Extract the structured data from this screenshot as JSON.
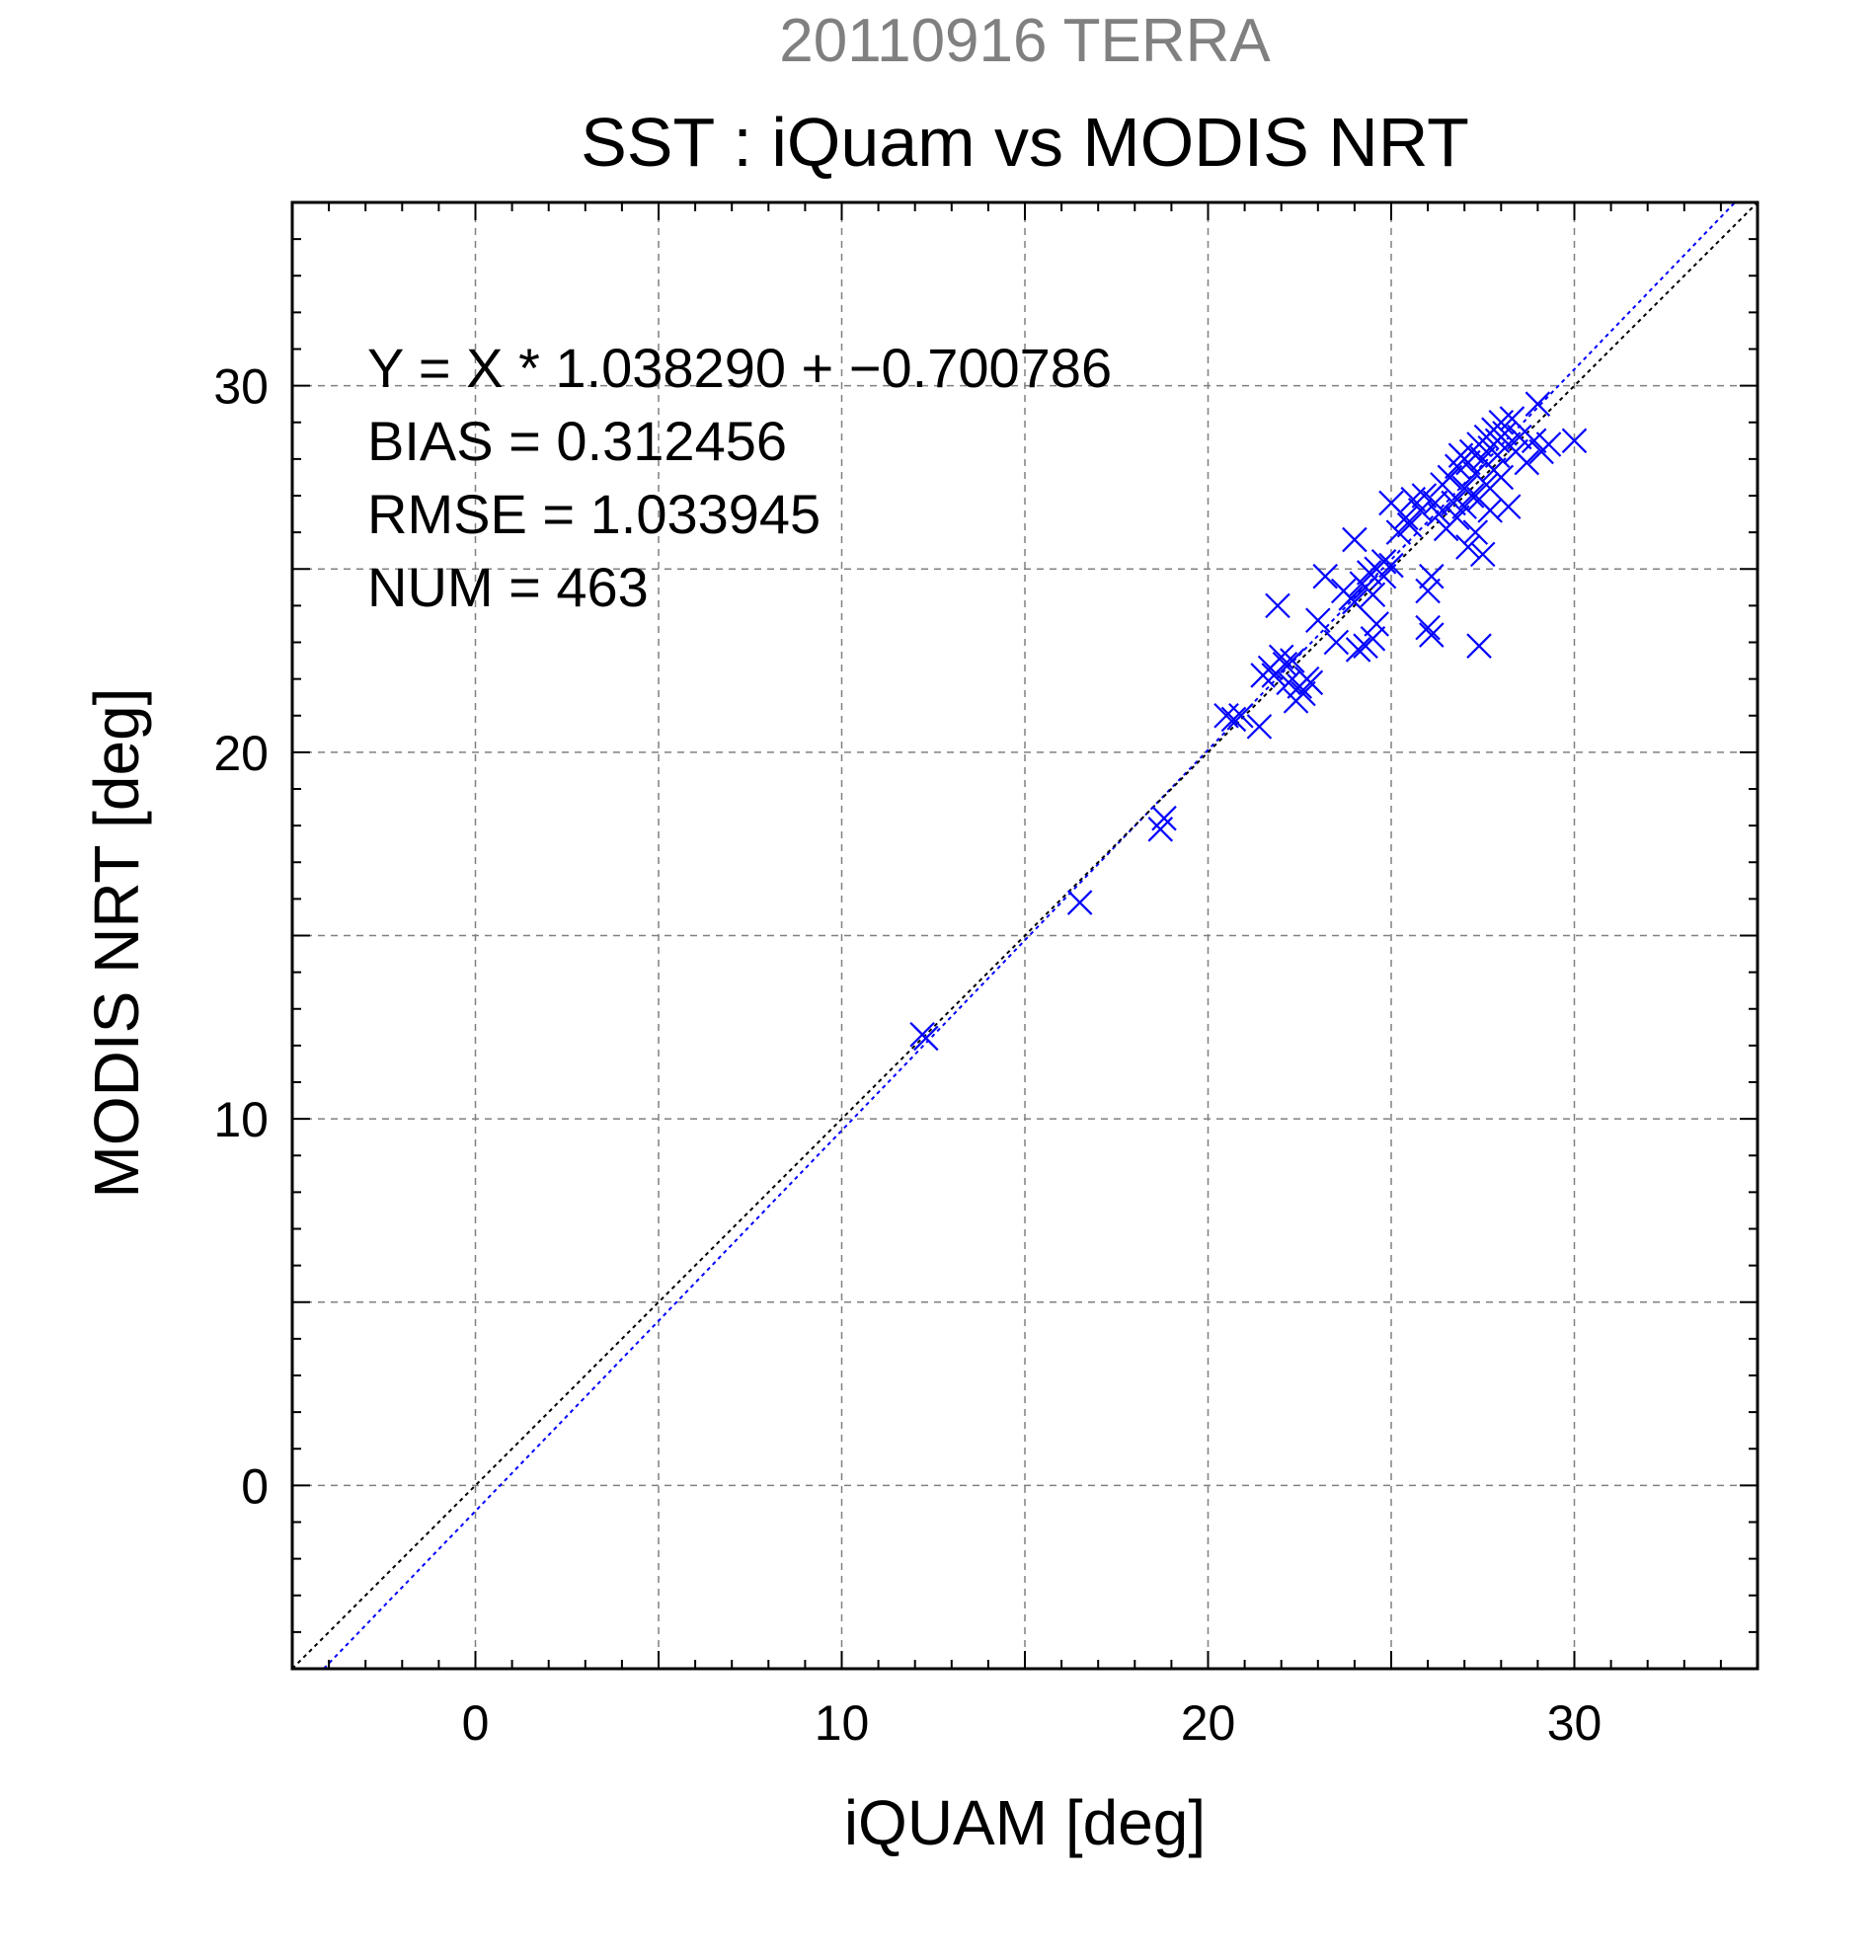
{
  "colors": {
    "background": "#ffffff",
    "frame": "#000000",
    "grid": "#808080",
    "points": "#0000ff",
    "fit_line": "#0000ff",
    "one_to_one_line": "#000000",
    "supertitle": "#808080"
  },
  "chart_data": {
    "type": "scatter",
    "supertitle": "20110916 TERRA",
    "title": "SST : iQuam vs MODIS NRT",
    "xlabel": "iQUAM [deg]",
    "ylabel": "MODIS NRT [deg]",
    "xlim": [
      -5,
      35
    ],
    "ylim": [
      -5,
      35
    ],
    "xticks": [
      0,
      10,
      20,
      30
    ],
    "yticks": [
      0,
      10,
      20,
      30
    ],
    "grid": true,
    "grid_step": 5,
    "marker": "x",
    "annotations": [
      "Y = X * 1.038290 + −0.700786",
      "BIAS = 0.312456",
      "RMSE = 1.033945",
      "NUM = 463"
    ],
    "lines": [
      {
        "kind": "regression",
        "slope": 1.03829,
        "intercept": -0.700786,
        "color": "#0000ff",
        "style": "dotted"
      },
      {
        "kind": "one-to-one",
        "slope": 1.0,
        "intercept": 0.0,
        "color": "#000000",
        "style": "dotted"
      }
    ],
    "series": [
      {
        "points": [
          [
            12.2,
            12.3
          ],
          [
            12.3,
            12.2
          ],
          [
            16.5,
            15.9
          ],
          [
            18.7,
            17.9
          ],
          [
            18.8,
            18.2
          ],
          [
            20.5,
            21.0
          ],
          [
            20.7,
            20.9
          ],
          [
            20.9,
            21.0
          ],
          [
            21.4,
            20.7
          ],
          [
            21.5,
            22.1
          ],
          [
            21.7,
            22.3
          ],
          [
            21.8,
            22.1
          ],
          [
            21.9,
            24.0
          ],
          [
            22.0,
            22.6
          ],
          [
            22.1,
            22.4
          ],
          [
            22.2,
            21.9
          ],
          [
            22.3,
            22.5
          ],
          [
            22.4,
            21.4
          ],
          [
            22.5,
            21.8
          ],
          [
            22.6,
            21.6
          ],
          [
            22.7,
            22.0
          ],
          [
            22.8,
            21.9
          ],
          [
            23.0,
            23.6
          ],
          [
            23.2,
            24.8
          ],
          [
            23.5,
            23.0
          ],
          [
            23.7,
            24.4
          ],
          [
            23.9,
            24.2
          ],
          [
            24.0,
            25.8
          ],
          [
            24.0,
            24.1
          ],
          [
            24.1,
            22.8
          ],
          [
            24.2,
            24.6
          ],
          [
            24.3,
            22.9
          ],
          [
            24.3,
            24.5
          ],
          [
            24.4,
            24.9
          ],
          [
            24.5,
            23.1
          ],
          [
            24.5,
            24.3
          ],
          [
            24.6,
            23.5
          ],
          [
            24.6,
            25.0
          ],
          [
            24.8,
            24.8
          ],
          [
            24.8,
            25.2
          ],
          [
            25.0,
            25.1
          ],
          [
            25.0,
            26.8
          ],
          [
            25.2,
            26.0
          ],
          [
            25.4,
            26.4
          ],
          [
            25.5,
            26.2
          ],
          [
            25.6,
            26.9
          ],
          [
            25.8,
            26.6
          ],
          [
            25.9,
            27.0
          ],
          [
            26.0,
            24.4
          ],
          [
            26.0,
            23.4
          ],
          [
            26.1,
            24.8
          ],
          [
            26.1,
            23.2
          ],
          [
            26.2,
            26.8
          ],
          [
            26.3,
            26.5
          ],
          [
            26.4,
            27.3
          ],
          [
            26.5,
            26.1
          ],
          [
            26.6,
            27.5
          ],
          [
            26.7,
            26.8
          ],
          [
            26.8,
            27.8
          ],
          [
            26.8,
            26.4
          ],
          [
            26.9,
            28.1
          ],
          [
            27.0,
            27.2
          ],
          [
            27.0,
            26.7
          ],
          [
            27.1,
            27.9
          ],
          [
            27.1,
            25.6
          ],
          [
            27.2,
            28.2
          ],
          [
            27.2,
            27.0
          ],
          [
            27.3,
            26.0
          ],
          [
            27.3,
            27.6
          ],
          [
            27.4,
            28.4
          ],
          [
            27.4,
            26.9
          ],
          [
            27.4,
            22.9
          ],
          [
            27.5,
            28.0
          ],
          [
            27.5,
            25.4
          ],
          [
            27.6,
            28.6
          ],
          [
            27.6,
            27.3
          ],
          [
            27.7,
            28.3
          ],
          [
            27.7,
            26.6
          ],
          [
            27.8,
            28.8
          ],
          [
            27.8,
            27.7
          ],
          [
            27.9,
            28.5
          ],
          [
            27.9,
            28.1
          ],
          [
            28.0,
            29.0
          ],
          [
            28.0,
            27.5
          ],
          [
            28.1,
            28.7
          ],
          [
            28.2,
            28.4
          ],
          [
            28.2,
            26.7
          ],
          [
            28.3,
            29.1
          ],
          [
            28.4,
            28.2
          ],
          [
            28.5,
            28.6
          ],
          [
            28.7,
            27.9
          ],
          [
            28.9,
            28.5
          ],
          [
            29.0,
            29.5
          ],
          [
            29.1,
            28.2
          ],
          [
            29.3,
            28.4
          ],
          [
            30.0,
            28.5
          ]
        ]
      }
    ]
  }
}
